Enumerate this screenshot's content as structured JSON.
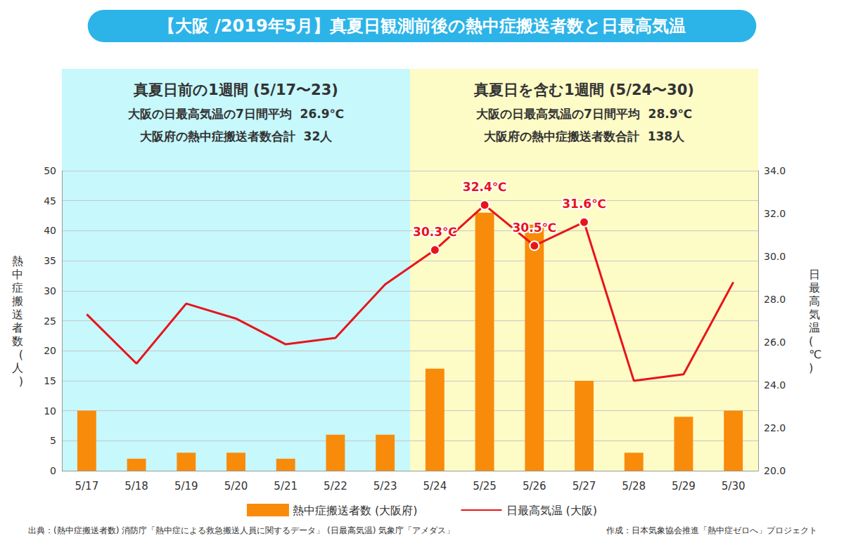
{
  "chart_data": {
    "type": "bar",
    "title": "【大阪 /2019年5月】真夏日観測前後の熱中症搬送者数と日最高気温",
    "categories": [
      "5/17",
      "5/18",
      "5/19",
      "5/20",
      "5/21",
      "5/22",
      "5/23",
      "5/24",
      "5/25",
      "5/26",
      "5/27",
      "5/28",
      "5/29",
      "5/30"
    ],
    "series": [
      {
        "name": "熱中症搬送者数 (大阪府)",
        "type": "bar",
        "color": "#f98b0a",
        "values": [
          10,
          2,
          3,
          3,
          2,
          6,
          6,
          17,
          43,
          41,
          15,
          3,
          9,
          10
        ]
      },
      {
        "name": "日最高気温 (大阪)",
        "type": "line",
        "axis": "y2",
        "color": "#e8141b",
        "marker": "circle",
        "line_style": "solid",
        "values": [
          27.3,
          25.0,
          27.8,
          27.1,
          25.9,
          26.2,
          28.7,
          30.3,
          32.4,
          30.5,
          31.6,
          24.2,
          24.5,
          28.8
        ],
        "value_labels": [
          null,
          null,
          null,
          null,
          null,
          null,
          null,
          "30.3℃",
          "32.4℃",
          "30.5℃",
          "31.6℃",
          null,
          null,
          null
        ]
      }
    ],
    "ylabel": "熱中症搬送者数(人)",
    "y2label": "日最高気温(℃)",
    "ylim": [
      0,
      50
    ],
    "yticks": [
      0,
      5,
      10,
      15,
      20,
      25,
      30,
      35,
      40,
      45,
      50
    ],
    "y2lim": [
      20,
      34
    ],
    "y2ticks": [
      {
        "value": 20,
        "label": "20.0"
      },
      {
        "value": 22,
        "label": "22.0"
      },
      {
        "value": 24,
        "label": "24.0"
      },
      {
        "value": 26,
        "label": "26.0"
      },
      {
        "value": 28,
        "label": "28.0"
      },
      {
        "value": 30,
        "label": "30.0"
      },
      {
        "value": 32,
        "label": "32.0"
      },
      {
        "value": 34,
        "label": "34.0"
      }
    ],
    "grid": true,
    "legend": "bottom",
    "annotations": [
      {
        "from": "5/17",
        "to": "5/23",
        "color": "#c6f8fc",
        "title": "真夏日前の1週間 (5/17〜23)",
        "lines": [
          "大阪の日最高気温の7日間平均  26.9℃",
          "大阪府の熱中症搬送者数合計  32人"
        ]
      },
      {
        "from": "5/24",
        "to": "5/30",
        "color": "#fdfbc6",
        "title": "真夏日を含む1週間 (5/24〜30)",
        "lines": [
          "大阪の日最高気温の7日間平均  28.9℃",
          "大阪府の熱中症搬送者数合計  138人"
        ]
      }
    ],
    "source": "出典：(熱中症搬送者数) 消防庁「熱中症による救急搬送人員に関するデータ」 (日最高気温) 気象庁「アメダス」",
    "credit": "作成：日本気象協会推進「熱中症ゼロへ」プロジェクト"
  }
}
